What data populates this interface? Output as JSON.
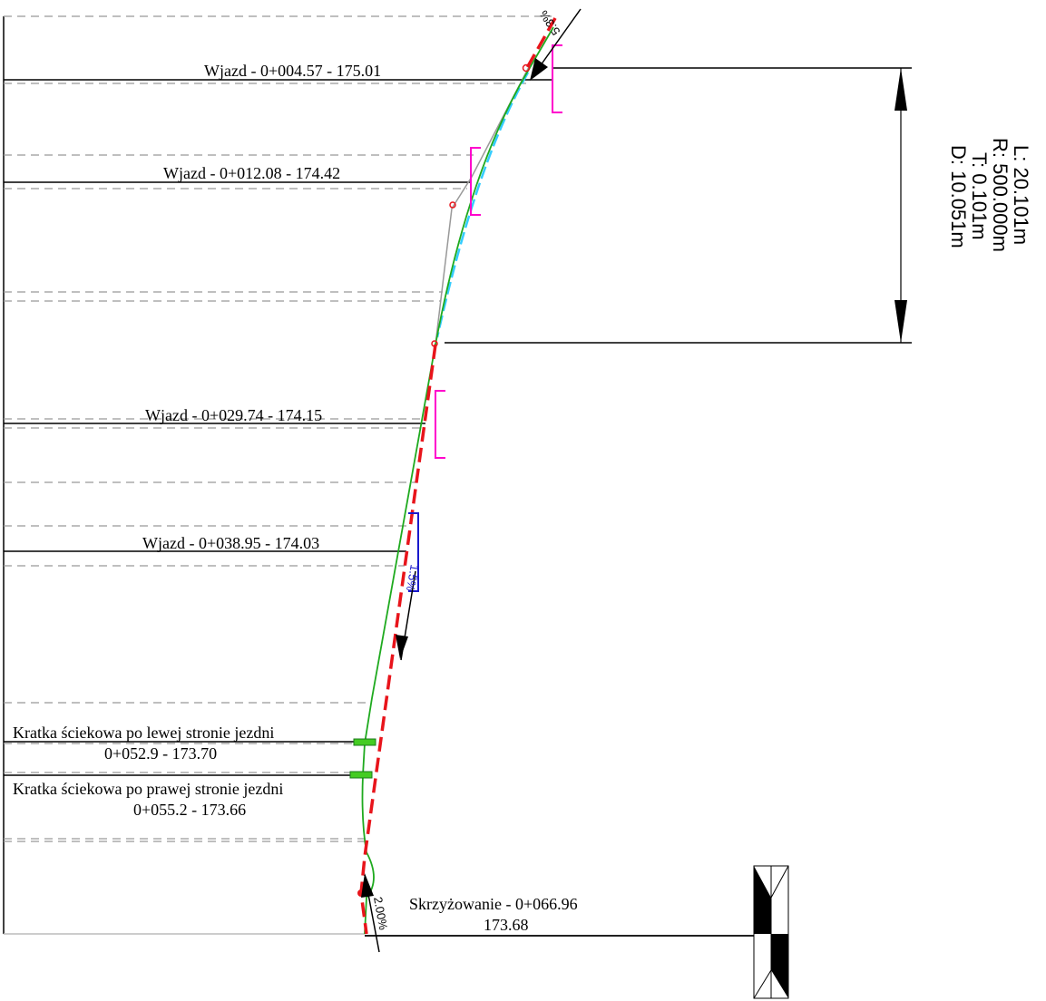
{
  "stations": [
    {
      "text": "Wjazd - 0+004.57 - 175.01"
    },
    {
      "text": "Wjazd - 0+012.08 - 174.42"
    },
    {
      "text": "Wjazd - 0+029.74 - 174.15"
    },
    {
      "text": "Wjazd - 0+038.95 - 174.03"
    }
  ],
  "gratings": [
    {
      "name": "Kratka ściekowa po  lewej stronie jezdni",
      "station": "0+052.9 - 173.70"
    },
    {
      "name": "Kratka ściekowa po  prawej stronie jezdni",
      "station": "0+055.2 - 173.66"
    }
  ],
  "junction": {
    "name": "Skrzyżowanie - 0+066.96",
    "level": "173.68"
  },
  "curve": {
    "length": "L: 20.101m",
    "radius": "R: 500.000m",
    "tangent": "T: 0.101m",
    "distance": "D: 10.051m"
  },
  "slopes": {
    "top": "5.3%",
    "middle": "1.5%",
    "bottom": "2.00%"
  },
  "colors": {
    "axis_red": "#e8141b",
    "road_green": "#1faa1f",
    "curve_cyan": "#33ccff",
    "marker_magenta": "#ff00cc",
    "marker_blue": "#1a1acc",
    "grating_green": "#44cc22",
    "dashed_grey": "#999999"
  }
}
